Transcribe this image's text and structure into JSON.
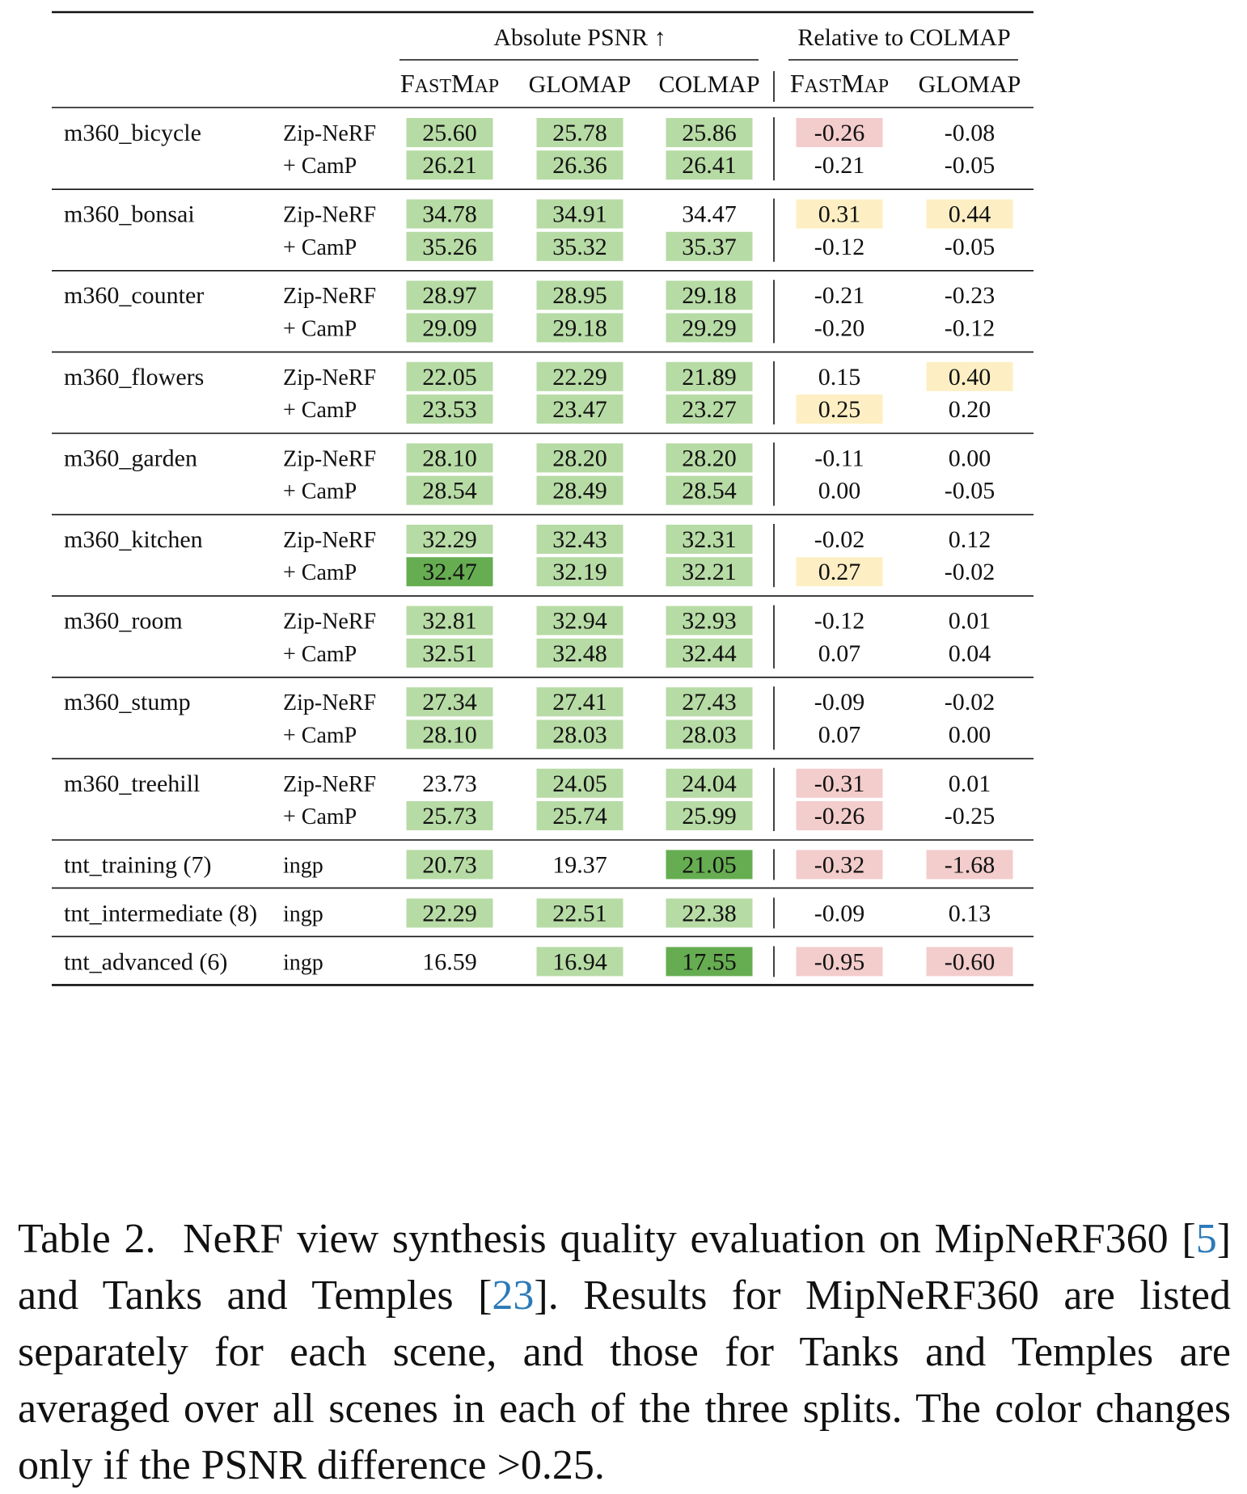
{
  "table": {
    "group_headers": {
      "absolute": "Absolute PSNR ↑",
      "relative": "Relative to COLMAP"
    },
    "abs_columns": [
      "FastMap",
      "GLOMAP",
      "COLMAP"
    ],
    "rel_columns": [
      "FastMap",
      "GLOMAP"
    ],
    "rows": [
      {
        "scene": "m360_bicycle",
        "method": "Zip-NeRF",
        "abs": [
          "25.60",
          "25.78",
          "25.86"
        ],
        "abs_shade": [
          "light",
          "light",
          "light"
        ],
        "rel": [
          "-0.26",
          "-0.08"
        ],
        "rel_shade": [
          "red",
          "none"
        ]
      },
      {
        "scene": "",
        "method": "+ CamP",
        "abs": [
          "26.21",
          "26.36",
          "26.41"
        ],
        "abs_shade": [
          "light",
          "light",
          "light"
        ],
        "rel": [
          "-0.21",
          "-0.05"
        ],
        "rel_shade": [
          "none",
          "none"
        ]
      },
      {
        "scene": "m360_bonsai",
        "method": "Zip-NeRF",
        "abs": [
          "34.78",
          "34.91",
          "34.47"
        ],
        "abs_shade": [
          "light",
          "light",
          "none"
        ],
        "rel": [
          "0.31",
          "0.44"
        ],
        "rel_shade": [
          "yellow",
          "yellow"
        ]
      },
      {
        "scene": "",
        "method": "+ CamP",
        "abs": [
          "35.26",
          "35.32",
          "35.37"
        ],
        "abs_shade": [
          "light",
          "light",
          "light"
        ],
        "rel": [
          "-0.12",
          "-0.05"
        ],
        "rel_shade": [
          "none",
          "none"
        ]
      },
      {
        "scene": "m360_counter",
        "method": "Zip-NeRF",
        "abs": [
          "28.97",
          "28.95",
          "29.18"
        ],
        "abs_shade": [
          "light",
          "light",
          "light"
        ],
        "rel": [
          "-0.21",
          "-0.23"
        ],
        "rel_shade": [
          "none",
          "none"
        ]
      },
      {
        "scene": "",
        "method": "+ CamP",
        "abs": [
          "29.09",
          "29.18",
          "29.29"
        ],
        "abs_shade": [
          "light",
          "light",
          "light"
        ],
        "rel": [
          "-0.20",
          "-0.12"
        ],
        "rel_shade": [
          "none",
          "none"
        ]
      },
      {
        "scene": "m360_flowers",
        "method": "Zip-NeRF",
        "abs": [
          "22.05",
          "22.29",
          "21.89"
        ],
        "abs_shade": [
          "light",
          "light",
          "light"
        ],
        "rel": [
          "0.15",
          "0.40"
        ],
        "rel_shade": [
          "none",
          "yellow"
        ]
      },
      {
        "scene": "",
        "method": "+ CamP",
        "abs": [
          "23.53",
          "23.47",
          "23.27"
        ],
        "abs_shade": [
          "light",
          "light",
          "light"
        ],
        "rel": [
          "0.25",
          "0.20"
        ],
        "rel_shade": [
          "yellow",
          "none"
        ]
      },
      {
        "scene": "m360_garden",
        "method": "Zip-NeRF",
        "abs": [
          "28.10",
          "28.20",
          "28.20"
        ],
        "abs_shade": [
          "light",
          "light",
          "light"
        ],
        "rel": [
          "-0.11",
          "0.00"
        ],
        "rel_shade": [
          "none",
          "none"
        ]
      },
      {
        "scene": "",
        "method": "+ CamP",
        "abs": [
          "28.54",
          "28.49",
          "28.54"
        ],
        "abs_shade": [
          "light",
          "light",
          "light"
        ],
        "rel": [
          "0.00",
          "-0.05"
        ],
        "rel_shade": [
          "none",
          "none"
        ]
      },
      {
        "scene": "m360_kitchen",
        "method": "Zip-NeRF",
        "abs": [
          "32.29",
          "32.43",
          "32.31"
        ],
        "abs_shade": [
          "light",
          "light",
          "light"
        ],
        "rel": [
          "-0.02",
          "0.12"
        ],
        "rel_shade": [
          "none",
          "none"
        ]
      },
      {
        "scene": "",
        "method": "+ CamP",
        "abs": [
          "32.47",
          "32.19",
          "32.21"
        ],
        "abs_shade": [
          "dark",
          "light",
          "light"
        ],
        "rel": [
          "0.27",
          "-0.02"
        ],
        "rel_shade": [
          "yellow",
          "none"
        ]
      },
      {
        "scene": "m360_room",
        "method": "Zip-NeRF",
        "abs": [
          "32.81",
          "32.94",
          "32.93"
        ],
        "abs_shade": [
          "light",
          "light",
          "light"
        ],
        "rel": [
          "-0.12",
          "0.01"
        ],
        "rel_shade": [
          "none",
          "none"
        ]
      },
      {
        "scene": "",
        "method": "+ CamP",
        "abs": [
          "32.51",
          "32.48",
          "32.44"
        ],
        "abs_shade": [
          "light",
          "light",
          "light"
        ],
        "rel": [
          "0.07",
          "0.04"
        ],
        "rel_shade": [
          "none",
          "none"
        ]
      },
      {
        "scene": "m360_stump",
        "method": "Zip-NeRF",
        "abs": [
          "27.34",
          "27.41",
          "27.43"
        ],
        "abs_shade": [
          "light",
          "light",
          "light"
        ],
        "rel": [
          "-0.09",
          "-0.02"
        ],
        "rel_shade": [
          "none",
          "none"
        ]
      },
      {
        "scene": "",
        "method": "+ CamP",
        "abs": [
          "28.10",
          "28.03",
          "28.03"
        ],
        "abs_shade": [
          "light",
          "light",
          "light"
        ],
        "rel": [
          "0.07",
          "0.00"
        ],
        "rel_shade": [
          "none",
          "none"
        ]
      },
      {
        "scene": "m360_treehill",
        "method": "Zip-NeRF",
        "abs": [
          "23.73",
          "24.05",
          "24.04"
        ],
        "abs_shade": [
          "none",
          "light",
          "light"
        ],
        "rel": [
          "-0.31",
          "0.01"
        ],
        "rel_shade": [
          "red",
          "none"
        ]
      },
      {
        "scene": "",
        "method": "+ CamP",
        "abs": [
          "25.73",
          "25.74",
          "25.99"
        ],
        "abs_shade": [
          "light",
          "light",
          "light"
        ],
        "rel": [
          "-0.26",
          "-0.25"
        ],
        "rel_shade": [
          "red",
          "none"
        ]
      },
      {
        "scene": "tnt_training (7)",
        "method": "ingp",
        "abs": [
          "20.73",
          "19.37",
          "21.05"
        ],
        "abs_shade": [
          "light",
          "none",
          "dark"
        ],
        "rel": [
          "-0.32",
          "-1.68"
        ],
        "rel_shade": [
          "red",
          "red"
        ]
      },
      {
        "scene": "tnt_intermediate (8)",
        "method": "ingp",
        "abs": [
          "22.29",
          "22.51",
          "22.38"
        ],
        "abs_shade": [
          "light",
          "light",
          "light"
        ],
        "rel": [
          "-0.09",
          "0.13"
        ],
        "rel_shade": [
          "none",
          "none"
        ]
      },
      {
        "scene": "tnt_advanced (6)",
        "method": "ingp",
        "abs": [
          "16.59",
          "16.94",
          "17.55"
        ],
        "abs_shade": [
          "none",
          "light",
          "dark"
        ],
        "rel": [
          "-0.95",
          "-0.60"
        ],
        "rel_shade": [
          "red",
          "red"
        ]
      }
    ]
  },
  "colors": {
    "light": "#b7dba5",
    "dark": "#66ad51",
    "red": "#f3cccc",
    "yellow": "#fdefc3",
    "rule": "#111111"
  },
  "caption": {
    "label": "Table 2.",
    "text_1": "NeRF view synthesis quality evaluation on MipNeRF360 [",
    "ref_1": "5",
    "text_2": "] and Tanks and Temples [",
    "ref_2": "23",
    "text_3": "]. Results for MipNeRF360 are listed separately for each scene, and those for Tanks and Temples are averaged over all scenes in each of the three splits. The color changes only if the PSNR difference >0.25."
  }
}
